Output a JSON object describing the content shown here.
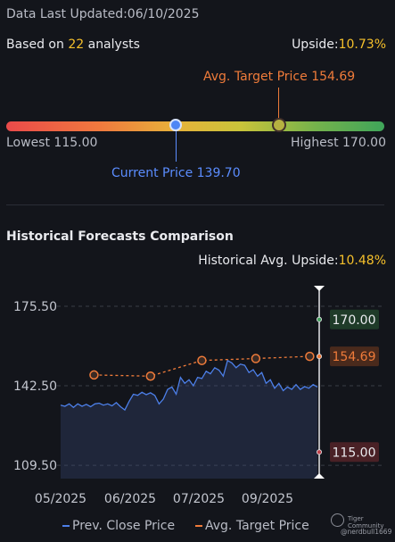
{
  "header": {
    "updated": "Data Last Updated:06/10/2025"
  },
  "summary": {
    "based_prefix": "Based on",
    "analysts_count": "22",
    "based_suffix": "analysts",
    "upside_label": "Upside:",
    "upside_value": "10.73%"
  },
  "gauge": {
    "target_label": "Avg. Target Price 154.69",
    "lowest_label": "Lowest 115.00",
    "highest_label": "Highest 170.00",
    "current_label": "Current Price 139.70"
  },
  "history": {
    "title": "Historical Forecasts Comparison",
    "avg_upside_label": "Historical Avg. Upside:",
    "avg_upside_value": "10.48%"
  },
  "chart_data": {
    "type": "area",
    "ylim": [
      104.0,
      184.0
    ],
    "y_ticks": [
      "175.50",
      "142.50",
      "109.50"
    ],
    "x_ticks": [
      "05/2025",
      "06/2025",
      "07/2025",
      "09/2025"
    ],
    "markers": [
      {
        "label": "170.00",
        "value": 170.0,
        "color": "#45a260"
      },
      {
        "label": "154.69",
        "value": 154.69,
        "color": "#ef7b3a"
      },
      {
        "label": "115.00",
        "value": 115.0,
        "color": "#c0414a"
      }
    ],
    "series": [
      {
        "name": "Prev. Close Price",
        "values": [
          134.5,
          134,
          135,
          133.5,
          135,
          134,
          134.8,
          133.8,
          135,
          135.3,
          134.5,
          135,
          134.2,
          135.5,
          133.8,
          132.5,
          136,
          139,
          138.5,
          139.8,
          138.8,
          139.6,
          138.5,
          135,
          137,
          141,
          142,
          139,
          146,
          143.5,
          145,
          142.5,
          146,
          145.5,
          148.5,
          147.5,
          150,
          149,
          146.5,
          153,
          152,
          150,
          151.5,
          151,
          148,
          149.2,
          146.5,
          148,
          143.5,
          145,
          141.5,
          143.5,
          140.5,
          142,
          141,
          143,
          141,
          142.2,
          141.5,
          143,
          142
        ]
      },
      {
        "name": "Avg. Target Price",
        "values": [
          147.0,
          146.5,
          153.0,
          153.8,
          154.69
        ]
      }
    ],
    "target_x": [
      0.13,
      0.35,
      0.55,
      0.76,
      0.97
    ]
  },
  "legend": {
    "close_label": "Prev. Close Price",
    "target_label": "Avg. Target Price"
  },
  "watermark": {
    "brand": "Tiger Community",
    "user": "@nerdbull1669"
  },
  "colors": {
    "line_blue": "#4c7fe8",
    "target_orange": "#ef7b3a"
  }
}
